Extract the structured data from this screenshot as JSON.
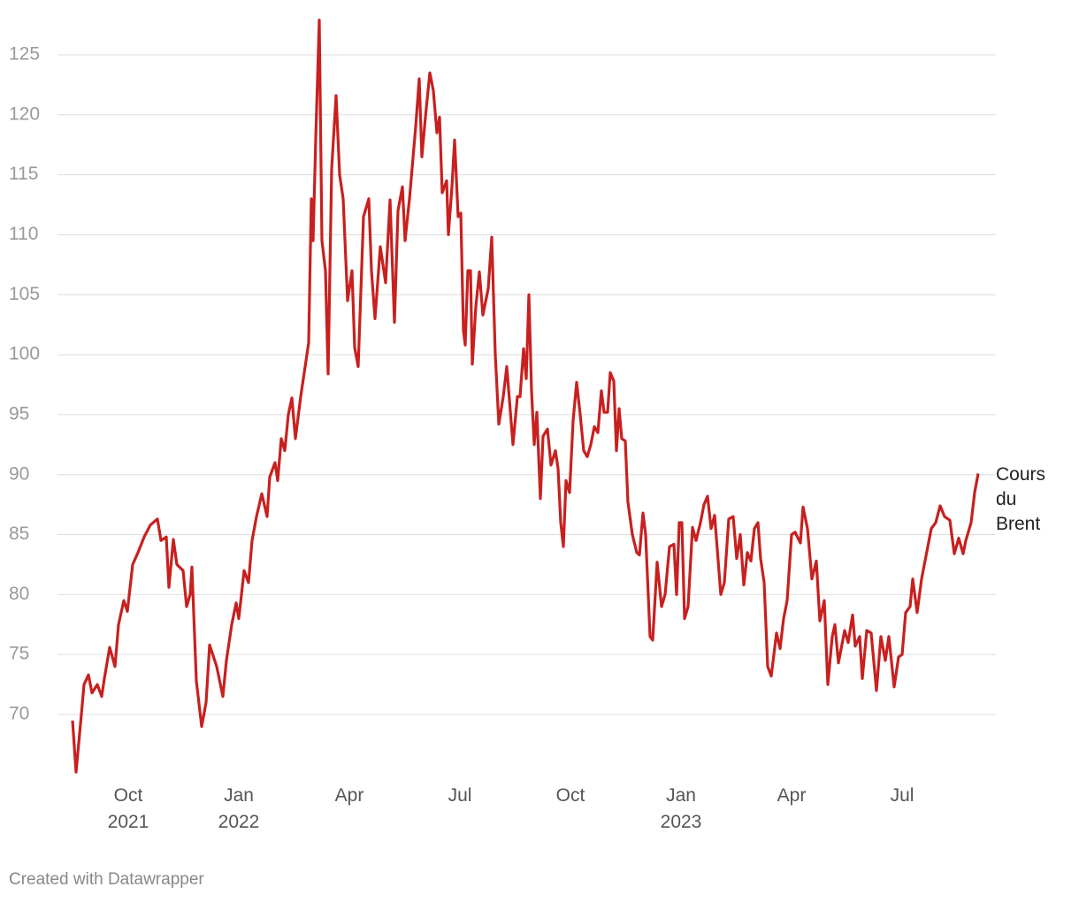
{
  "chart_data": {
    "type": "line",
    "x": [
      2021.624,
      2021.632,
      2021.644,
      2021.65,
      2021.66,
      2021.668,
      2021.68,
      2021.69,
      2021.696,
      2021.708,
      2021.72,
      2021.728,
      2021.74,
      2021.748,
      2021.76,
      2021.772,
      2021.786,
      2021.8,
      2021.816,
      2021.824,
      2021.836,
      2021.842,
      2021.852,
      2021.86,
      2021.874,
      2021.882,
      2021.89,
      2021.894,
      2021.904,
      2021.916,
      2021.926,
      2021.934,
      2021.95,
      2021.964,
      2021.972,
      2021.984,
      2021.994,
      2022.0,
      2022.012,
      2022.022,
      2022.03,
      2022.04,
      2022.052,
      2022.064,
      2022.07,
      2022.082,
      2022.088,
      2022.096,
      2022.104,
      2022.112,
      2022.12,
      2022.128,
      2022.14,
      2022.15,
      2022.158,
      2022.164,
      2022.168,
      2022.174,
      2022.182,
      2022.188,
      2022.196,
      2022.202,
      2022.21,
      2022.22,
      2022.228,
      2022.236,
      2022.246,
      2022.256,
      2022.262,
      2022.27,
      2022.282,
      2022.294,
      2022.3,
      2022.308,
      2022.32,
      2022.332,
      2022.342,
      2022.352,
      2022.36,
      2022.37,
      2022.376,
      2022.386,
      2022.4,
      2022.408,
      2022.414,
      2022.422,
      2022.432,
      2022.44,
      2022.448,
      2022.454,
      2022.46,
      2022.47,
      2022.474,
      2022.482,
      2022.488,
      2022.496,
      2022.502,
      2022.508,
      2022.512,
      2022.518,
      2022.524,
      2022.528,
      2022.536,
      2022.544,
      2022.552,
      2022.564,
      2022.572,
      2022.58,
      2022.588,
      2022.598,
      2022.606,
      2022.62,
      2022.63,
      2022.636,
      2022.644,
      2022.65,
      2022.656,
      2022.662,
      2022.668,
      2022.674,
      2022.682,
      2022.688,
      2022.698,
      2022.706,
      2022.716,
      2022.722,
      2022.728,
      2022.734,
      2022.74,
      2022.748,
      2022.756,
      2022.764,
      2022.772,
      2022.78,
      2022.788,
      2022.796,
      2022.804,
      2022.812,
      2022.82,
      2022.826,
      2022.834,
      2022.84,
      2022.848,
      2022.854,
      2022.86,
      2022.866,
      2022.874,
      2022.88,
      2022.89,
      2022.9,
      2022.906,
      2022.914,
      2022.92,
      2022.93,
      2022.936,
      2022.946,
      2022.956,
      2022.964,
      2022.974,
      2022.984,
      2022.99,
      2022.996,
      2023.002,
      2023.008,
      2023.016,
      2023.026,
      2023.034,
      2023.044,
      2023.052,
      2023.06,
      2023.068,
      2023.076,
      2023.09,
      2023.098,
      2023.108,
      2023.118,
      2023.126,
      2023.134,
      2023.142,
      2023.15,
      2023.158,
      2023.166,
      2023.174,
      2023.18,
      2023.188,
      2023.196,
      2023.204,
      2023.216,
      2023.224,
      2023.232,
      2023.24,
      2023.25,
      2023.258,
      2023.27,
      2023.276,
      2023.286,
      2023.296,
      2023.306,
      2023.314,
      2023.324,
      2023.332,
      2023.342,
      2023.348,
      2023.356,
      2023.37,
      2023.378,
      2023.388,
      2023.394,
      2023.404,
      2023.41,
      2023.42,
      2023.43,
      2023.442,
      2023.452,
      2023.462,
      2023.47,
      2023.482,
      2023.492,
      2023.5,
      2023.508,
      2023.518,
      2023.524,
      2023.534,
      2023.544,
      2023.556,
      2023.566,
      2023.576,
      2023.586,
      2023.596,
      2023.608,
      2023.618,
      2023.628,
      2023.638,
      2023.644,
      2023.656,
      2023.664,
      2023.672
    ],
    "series": [
      {
        "name": "Cours du Brent",
        "color": "#c8201f",
        "values": [
          69.5,
          65.2,
          70,
          72.5,
          73.3,
          71.8,
          72.5,
          71.5,
          73,
          75.6,
          74,
          77.5,
          79.5,
          78.6,
          82.5,
          83.5,
          84.8,
          85.8,
          86.3,
          84.5,
          84.8,
          80.6,
          84.6,
          82.5,
          82,
          79,
          80,
          82.3,
          72.8,
          69,
          71,
          75.8,
          74,
          71.5,
          74.5,
          77.5,
          79.3,
          78,
          82,
          81,
          84.5,
          86.5,
          88.4,
          86.5,
          89.8,
          91,
          89.5,
          93,
          92,
          95,
          96.4,
          93,
          96.5,
          99,
          101,
          113,
          109.5,
          118,
          127.9,
          109.5,
          107,
          98.4,
          115.5,
          121.6,
          115,
          113,
          104.5,
          107,
          100.6,
          99,
          111.5,
          113,
          107,
          103,
          109,
          106,
          112.9,
          102.7,
          112,
          114,
          109.5,
          113,
          119,
          123,
          116.5,
          119.8,
          123.5,
          122,
          118.5,
          119.8,
          113.5,
          114.5,
          110,
          114,
          117.9,
          111.5,
          111.8,
          102,
          100.8,
          107,
          107,
          99.2,
          104,
          106.9,
          103.3,
          105.5,
          109.8,
          100,
          94.2,
          96.5,
          99,
          92.5,
          96.5,
          96.5,
          100.5,
          98,
          105,
          97,
          92.5,
          95.2,
          88,
          93.2,
          93.8,
          90.8,
          92,
          90.5,
          86,
          84,
          89.5,
          88.5,
          94.5,
          97.7,
          95,
          92,
          91.5,
          92.5,
          94,
          93.5,
          97,
          95.2,
          95.2,
          98.5,
          97.8,
          92,
          95.5,
          93,
          92.8,
          87.7,
          85,
          83.5,
          83.3,
          86.8,
          85,
          76.5,
          76.2,
          82.7,
          79,
          80,
          84,
          84.2,
          80,
          86,
          86,
          78,
          79,
          85.6,
          84.5,
          86,
          87.5,
          88.2,
          85.5,
          86.6,
          80,
          81,
          86.3,
          86.5,
          83,
          85,
          80.8,
          83.5,
          82.8,
          85.5,
          86,
          83,
          81,
          74,
          73.2,
          76.8,
          75.5,
          78,
          79.5,
          85,
          85.2,
          84.3,
          87.3,
          85.5,
          81.3,
          82.8,
          77.8,
          79.5,
          72.5,
          76.5,
          77.5,
          74.3,
          77,
          76,
          78.3,
          75.7,
          76.5,
          73,
          77,
          76.8,
          72,
          76.5,
          74.5,
          76.5,
          72.3,
          74.8,
          75,
          78.5,
          79,
          81.3,
          78.5,
          81.3,
          83.6,
          85.5,
          86,
          87.4,
          86.5,
          86.2,
          83.4,
          84.7,
          83.4,
          84.5,
          86,
          88.5,
          90.1
        ]
      }
    ],
    "xlim": [
      2021.59,
      2023.712
    ],
    "xticks": [
      {
        "value": 2021.75,
        "label": "Oct 2021"
      },
      {
        "value": 2022.0,
        "label": "Jan 2022"
      },
      {
        "value": 2022.25,
        "label": "Apr"
      },
      {
        "value": 2022.5,
        "label": "Jul"
      },
      {
        "value": 2022.75,
        "label": "Oct"
      },
      {
        "value": 2023.0,
        "label": "Jan 2023"
      },
      {
        "value": 2023.25,
        "label": "Apr"
      },
      {
        "value": 2023.5,
        "label": "Jul"
      }
    ],
    "ylim": [
      65,
      128
    ],
    "yticks": [
      70,
      75,
      80,
      85,
      90,
      95,
      100,
      105,
      110,
      115,
      120,
      125
    ],
    "grid": true,
    "footer": "Created with Datawrapper"
  }
}
